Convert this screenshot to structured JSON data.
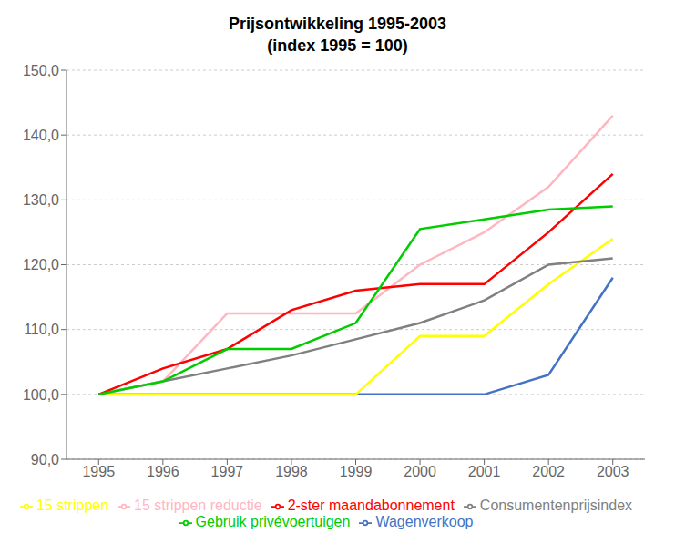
{
  "chart_data": {
    "type": "line",
    "title": "Prijsontwikkeling 1995-2003",
    "subtitle": "(index 1995 = 100)",
    "x": [
      1995,
      1996,
      1997,
      1998,
      1999,
      2000,
      2001,
      2002,
      2003
    ],
    "series": [
      {
        "name": "Wagenverkoop",
        "color": "#4472C4",
        "values": [
          100.0,
          100.0,
          100.0,
          100.0,
          100.0,
          100.0,
          100.0,
          103.0,
          118.0
        ]
      },
      {
        "name": "15 strippen",
        "color": "#FFFF00",
        "values": [
          100.0,
          100.0,
          100.0,
          100.0,
          100.0,
          109.0,
          109.0,
          117.0,
          124.0
        ]
      },
      {
        "name": "Consumentenprijsindex",
        "color": "#808080",
        "values": [
          100.0,
          102.0,
          104.0,
          106.0,
          108.5,
          111.0,
          114.5,
          120.0,
          121.0
        ]
      },
      {
        "name": "15 strippen reductie",
        "color": "#FFB6C1",
        "values": [
          100.0,
          102.0,
          112.5,
          112.5,
          112.5,
          120.0,
          125.0,
          132.0,
          143.0
        ]
      },
      {
        "name": "2-ster maandabonnement",
        "color": "#FF0000",
        "values": [
          100.0,
          104.0,
          107.0,
          113.0,
          116.0,
          117.0,
          117.0,
          125.0,
          134.0
        ]
      },
      {
        "name": "Gebruik privévoertuigen",
        "color": "#00CC00",
        "values": [
          100.0,
          102.0,
          107.0,
          107.0,
          111.0,
          125.5,
          127.0,
          128.5,
          129.0
        ]
      }
    ],
    "xlim": [
      1994.5,
      2003.5
    ],
    "xticks": [
      1995,
      1996,
      1997,
      1998,
      1999,
      2000,
      2001,
      2002,
      2003
    ],
    "ylim": [
      90.0,
      150.0
    ],
    "yticks": [
      {
        "value": 90.0,
        "label": "90,0"
      },
      {
        "value": 100.0,
        "label": "100,0"
      },
      {
        "value": 110.0,
        "label": "110,0"
      },
      {
        "value": 120.0,
        "label": "120,0"
      },
      {
        "value": 130.0,
        "label": "130,0"
      },
      {
        "value": 140.0,
        "label": "140,0"
      },
      {
        "value": 150.0,
        "label": "150,0"
      }
    ],
    "grid": true,
    "legend": "bottom"
  }
}
